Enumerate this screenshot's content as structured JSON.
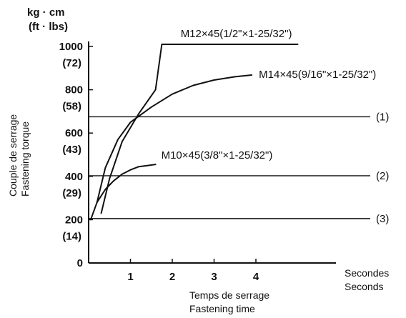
{
  "chart_data": {
    "type": "line",
    "title": "",
    "y_unit": [
      "kg · cm",
      "(ft · lbs)"
    ],
    "ylabel": [
      "Couple de serrage",
      "Fastening torque"
    ],
    "xlabel": [
      "Temps de serrage",
      "Fastening time"
    ],
    "x_unit": [
      "Secondes",
      "Seconds"
    ],
    "xlim": [
      0,
      5.5
    ],
    "ylim": [
      0,
      1100
    ],
    "x_ticks": [
      {
        "value": 1,
        "label": "1"
      },
      {
        "value": 2,
        "label": "2"
      },
      {
        "value": 3,
        "label": "3"
      },
      {
        "value": 4,
        "label": "4"
      }
    ],
    "y_ticks": [
      {
        "value": 0,
        "label": "0",
        "alt": ""
      },
      {
        "value": 200,
        "label": "200",
        "alt": "(14)"
      },
      {
        "value": 400,
        "label": "400",
        "alt": "(29)"
      },
      {
        "value": 600,
        "label": "600",
        "alt": "(43)"
      },
      {
        "value": 800,
        "label": "800",
        "alt": "(58)"
      },
      {
        "value": 1000,
        "label": "1000",
        "alt": "(72)"
      }
    ],
    "series": [
      {
        "name": "M12×45(1/2\"×1-25/32\")",
        "x": [
          0.3,
          0.5,
          0.8,
          1.2,
          1.6,
          1.75,
          2.0,
          3.0,
          4.0,
          5.0
        ],
        "y": [
          230,
          390,
          560,
          690,
          800,
          1010,
          1010,
          1010,
          1010,
          1010
        ]
      },
      {
        "name": "M14×45(9/16\"×1-25/32\")",
        "x": [
          0.2,
          0.4,
          0.7,
          1.0,
          1.5,
          2.0,
          2.5,
          3.0,
          3.5,
          3.9
        ],
        "y": [
          280,
          440,
          570,
          650,
          720,
          780,
          820,
          845,
          860,
          868
        ]
      },
      {
        "name": "M10×45(3/8\"×1-25/32\")",
        "x": [
          0.05,
          0.2,
          0.4,
          0.6,
          0.8,
          1.0,
          1.2,
          1.4,
          1.6
        ],
        "y": [
          200,
          280,
          340,
          380,
          410,
          430,
          445,
          450,
          455
        ]
      }
    ],
    "reference_lines": [
      {
        "name": "(1)",
        "y": 675
      },
      {
        "name": "(2)",
        "y": 403
      },
      {
        "name": "(3)",
        "y": 205
      }
    ]
  }
}
